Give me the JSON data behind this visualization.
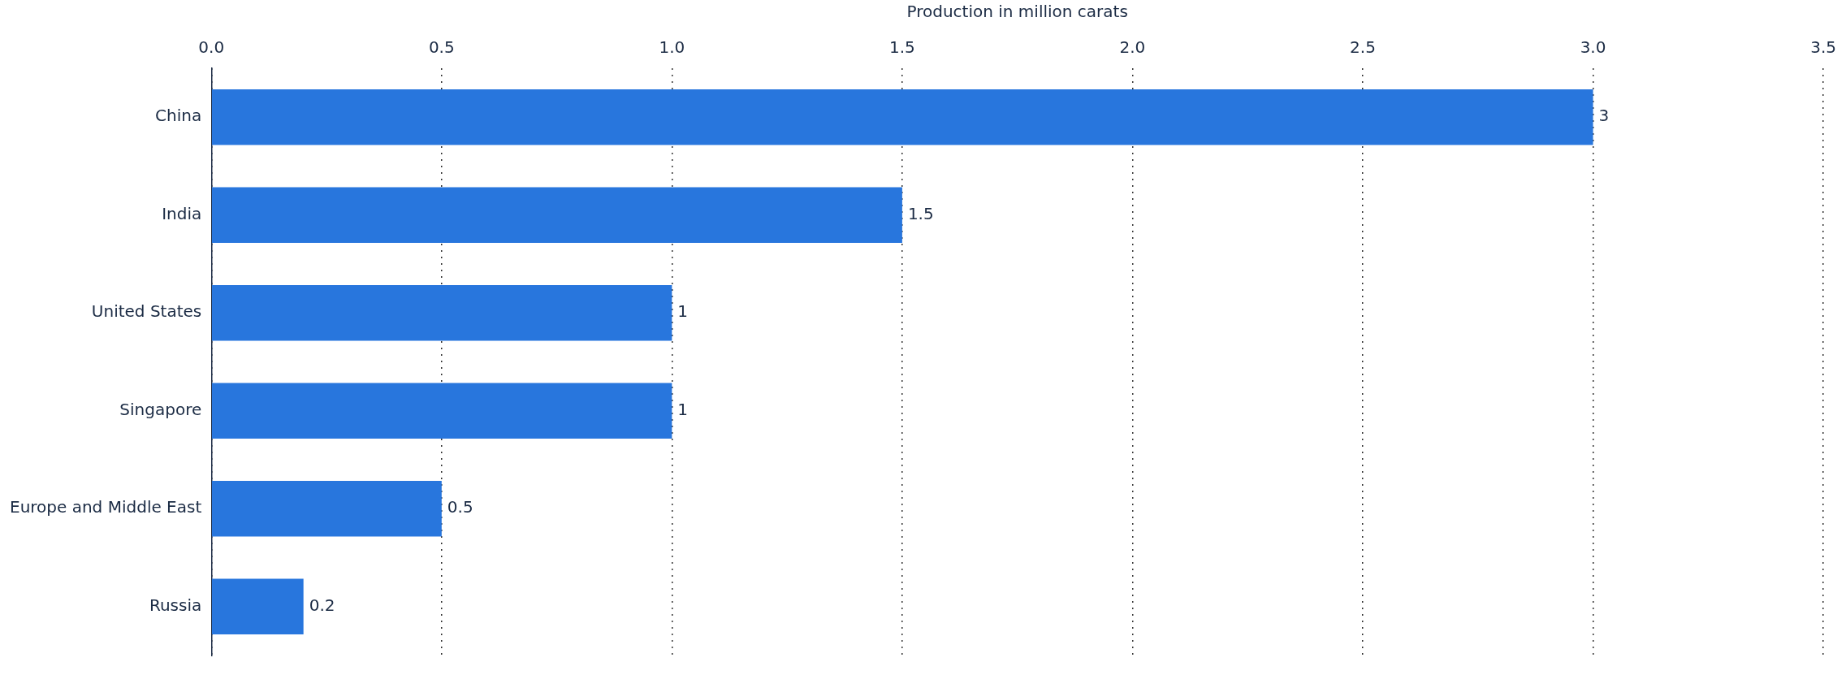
{
  "chart_data": {
    "type": "bar",
    "orientation": "horizontal",
    "xlabel": "Production in million carats",
    "categories": [
      "China",
      "India",
      "United States",
      "Singapore",
      "Europe and Middle East",
      "Russia"
    ],
    "values": [
      3,
      1.5,
      1,
      1,
      0.5,
      0.2
    ],
    "color": "#2876dd",
    "xlim": [
      0,
      3.5
    ],
    "xticks": [
      {
        "value": 0,
        "label": "0.0"
      },
      {
        "value": 0.5,
        "label": "0.5"
      },
      {
        "value": 1,
        "label": "1.0"
      },
      {
        "value": 1.5,
        "label": "1.5"
      },
      {
        "value": 2,
        "label": "2.0"
      },
      {
        "value": 2.5,
        "label": "2.5"
      },
      {
        "value": 3,
        "label": "3.0"
      },
      {
        "value": 3.5,
        "label": "3.5"
      }
    ],
    "grid": "x",
    "data_labels": true,
    "legend": false
  }
}
